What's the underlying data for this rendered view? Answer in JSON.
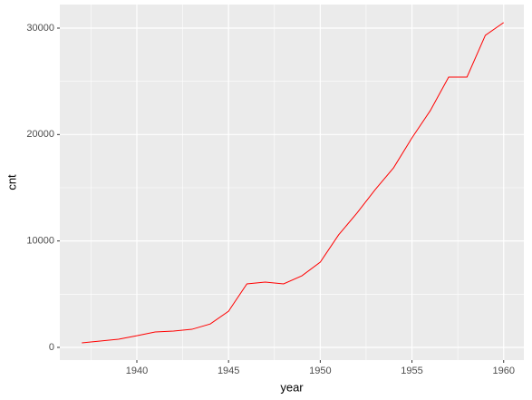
{
  "chart_data": {
    "type": "line",
    "x_label": "year",
    "y_label": "cnt",
    "x": [
      1937,
      1938,
      1939,
      1940,
      1941,
      1942,
      1943,
      1944,
      1945,
      1946,
      1947,
      1948,
      1949,
      1950,
      1951,
      1952,
      1953,
      1954,
      1955,
      1956,
      1957,
      1958,
      1959,
      1960
    ],
    "series": [
      {
        "color": "#ff0000",
        "values": [
          430,
          600,
          770,
          1100,
          1450,
          1530,
          1700,
          2200,
          3400,
          5970,
          6140,
          5970,
          6730,
          8010,
          10570,
          12620,
          14830,
          16880,
          19690,
          22250,
          25400,
          25400,
          29320,
          30520
        ]
      }
    ],
    "xlim": [
      1935.8,
      1961.1
    ],
    "ylim": [
      -1194,
      32216
    ],
    "xticks": [
      1940,
      1945,
      1950,
      1955,
      1960
    ],
    "yticks": [
      0,
      10000,
      20000,
      30000
    ],
    "grid": true
  }
}
